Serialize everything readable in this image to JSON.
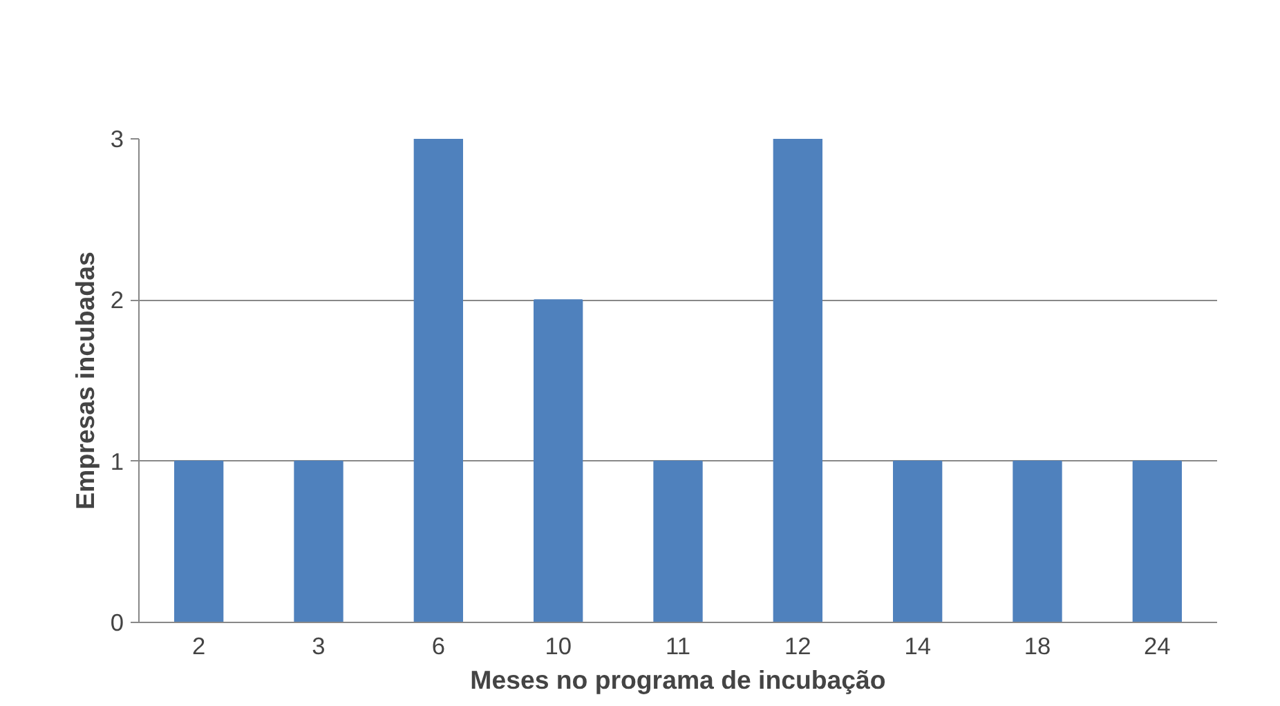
{
  "chart_data": {
    "type": "bar",
    "xlabel": "Meses no programa de incubação",
    "ylabel": "Empresas incubadas",
    "categories": [
      "2",
      "3",
      "6",
      "10",
      "11",
      "12",
      "14",
      "18",
      "24"
    ],
    "values": [
      1,
      1,
      3,
      2,
      1,
      3,
      1,
      1,
      1
    ],
    "color": "#4f81bd",
    "ylim": [
      0,
      3
    ],
    "yticks": [
      0,
      1,
      2,
      3
    ],
    "grid": "y"
  }
}
